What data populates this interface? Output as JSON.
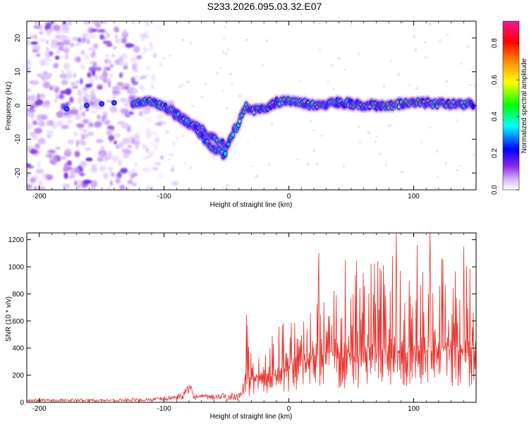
{
  "title": "S233.2026.095.03.32.E07",
  "chart_data": [
    {
      "type": "heatmap",
      "xlabel": "Height of straight line (km)",
      "ylabel": "Frequency (Hz)",
      "xlim": [
        -210,
        150
      ],
      "ylim": [
        -25,
        25
      ],
      "xticks": [
        -200,
        -100,
        0,
        100
      ],
      "xtick_labels": [
        "-200",
        "-100",
        "0",
        "100"
      ],
      "yticks": [
        20,
        10,
        0,
        -10,
        -20
      ],
      "ytick_labels": [
        "20",
        "10",
        "0",
        "-10",
        "-20"
      ],
      "colorbar": {
        "label": "Normalized spectral amplitude",
        "range": [
          0,
          0.92
        ],
        "ticks": [
          0.0,
          0.2,
          0.4,
          0.6,
          0.8
        ],
        "tick_labels": [
          "0.0",
          "0.2",
          "0.4",
          "0.6",
          "0.8"
        ],
        "colors": [
          "#ffffff",
          "#d6b8ff",
          "#8a2be2",
          "#0000ff",
          "#00ffff",
          "#00ff00",
          "#ffff00",
          "#ff8c00",
          "#ff0000",
          "#ff1493"
        ]
      },
      "ridge": {
        "height_km": [
          -125,
          -110,
          -100,
          -90,
          -80,
          -70,
          -60,
          -50,
          -40,
          -35,
          -30,
          -20,
          -10,
          0,
          20,
          40,
          60,
          80,
          100,
          120,
          148
        ],
        "frequency_hz": [
          0.5,
          1,
          0,
          -3,
          -5,
          -7,
          -10,
          -12,
          -5,
          0,
          -1.5,
          -1,
          1,
          1.5,
          0,
          1,
          0,
          0,
          1,
          0.5,
          0.5
        ]
      },
      "branch": {
        "height_km": [
          -95,
          -85,
          -75,
          -65,
          -55,
          -50
        ],
        "frequency_hz": [
          -1,
          -4,
          -7,
          -11,
          -14,
          -15
        ]
      },
      "noise_region_km": [
        -210,
        -120
      ]
    },
    {
      "type": "line",
      "xlabel": "Height of straight line (km)",
      "ylabel": "SNR (10 * v/v)",
      "xlim": [
        -210,
        150
      ],
      "ylim": [
        0,
        1250
      ],
      "xticks": [
        -200,
        -100,
        0,
        100
      ],
      "xtick_labels": [
        "-200",
        "-100",
        "0",
        "100"
      ],
      "yticks": [
        0,
        200,
        400,
        600,
        800,
        1000,
        1200
      ],
      "ytick_labels": [
        "0",
        "200",
        "400",
        "600",
        "800",
        "1000",
        "1200"
      ],
      "color": "#e8302a",
      "envelope": {
        "height_km": [
          -210,
          -150,
          -120,
          -100,
          -85,
          -80,
          -75,
          -60,
          -40,
          -35,
          -33,
          -30,
          -20,
          -10,
          0,
          10,
          20,
          30,
          40,
          50,
          60,
          70,
          80,
          90,
          100,
          110,
          120,
          130,
          140,
          150
        ],
        "base": [
          5,
          5,
          5,
          10,
          20,
          40,
          20,
          15,
          15,
          60,
          150,
          150,
          180,
          200,
          250,
          280,
          300,
          320,
          330,
          340,
          340,
          350,
          350,
          360,
          360,
          370,
          370,
          370,
          380,
          380
        ],
        "peak": [
          25,
          25,
          30,
          40,
          70,
          150,
          60,
          60,
          80,
          200,
          650,
          400,
          450,
          550,
          650,
          800,
          900,
          950,
          1000,
          1050,
          1050,
          1100,
          1150,
          1150,
          1150,
          1200,
          1200,
          1150,
          1100,
          1000
        ]
      },
      "peaks": [
        {
          "height_km": -34,
          "value": 650
        },
        {
          "height_km": 24,
          "value": 1100
        },
        {
          "height_km": 45,
          "value": 1050
        },
        {
          "height_km": 86,
          "value": 1250
        },
        {
          "height_km": 113,
          "value": 1250
        },
        {
          "height_km": 140,
          "value": 1150
        }
      ]
    }
  ]
}
